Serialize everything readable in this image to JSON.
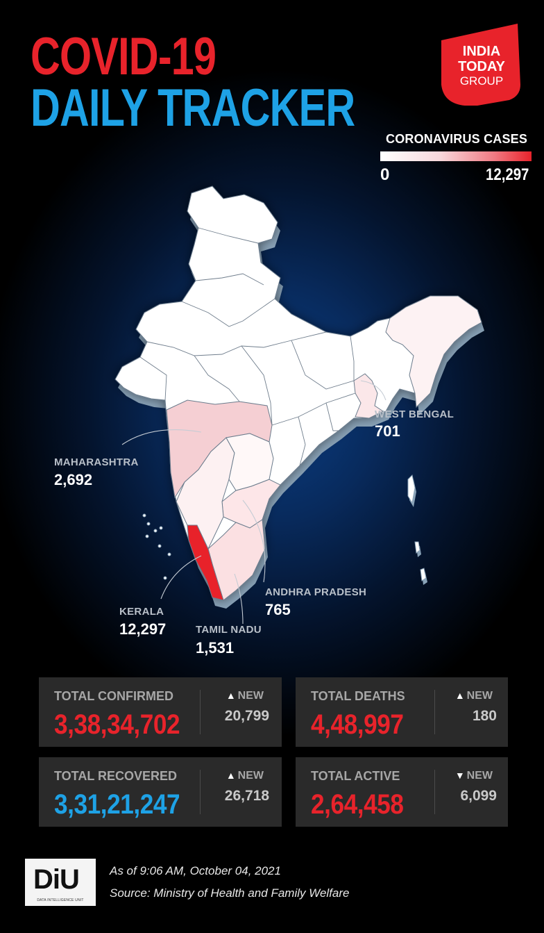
{
  "header": {
    "title_line1": "COVID-19",
    "title_line2": "DAILY TRACKER",
    "logo": [
      "INDIA",
      "TODAY",
      "GROUP"
    ]
  },
  "legend": {
    "title": "CORONAVIRUS CASES",
    "min": "0",
    "max": "12,297",
    "min_color": "#ffffff",
    "max_color": "#e8232b"
  },
  "map": {
    "region": "India",
    "states": [
      {
        "name": "WEST BENGAL",
        "value": "701",
        "cases": 701
      },
      {
        "name": "MAHARASHTRA",
        "value": "2,692",
        "cases": 2692
      },
      {
        "name": "KERALA",
        "value": "12,297",
        "cases": 12297
      },
      {
        "name": "TAMIL NADU",
        "value": "1,531",
        "cases": 1531
      },
      {
        "name": "ANDHRA PRADESH",
        "value": "765",
        "cases": 765
      }
    ]
  },
  "stats": [
    {
      "label": "TOTAL CONFIRMED",
      "value": "3,38,34,702",
      "value_color": "#e8232b",
      "new_label": "NEW",
      "new_direction": "up",
      "new_value": "20,799"
    },
    {
      "label": "TOTAL DEATHS",
      "value": "4,48,997",
      "value_color": "#e8232b",
      "new_label": "NEW",
      "new_direction": "up",
      "new_value": "180"
    },
    {
      "label": "TOTAL RECOVERED",
      "value": "3,31,21,247",
      "value_color": "#1ea2e6",
      "new_label": "NEW",
      "new_direction": "up",
      "new_value": "26,718"
    },
    {
      "label": "TOTAL ACTIVE",
      "value": "2,64,458",
      "value_color": "#e8232b",
      "new_label": "NEW",
      "new_direction": "down",
      "new_value": "6,099"
    }
  ],
  "footer": {
    "badge": "DiU",
    "badge_sub": "DATA INTELLIGENCE UNIT",
    "as_of": "As of 9:06 AM, October 04, 2021",
    "source": "Source: Ministry of Health and Family Welfare"
  },
  "icons": {
    "up": "▲",
    "down": "▼"
  }
}
